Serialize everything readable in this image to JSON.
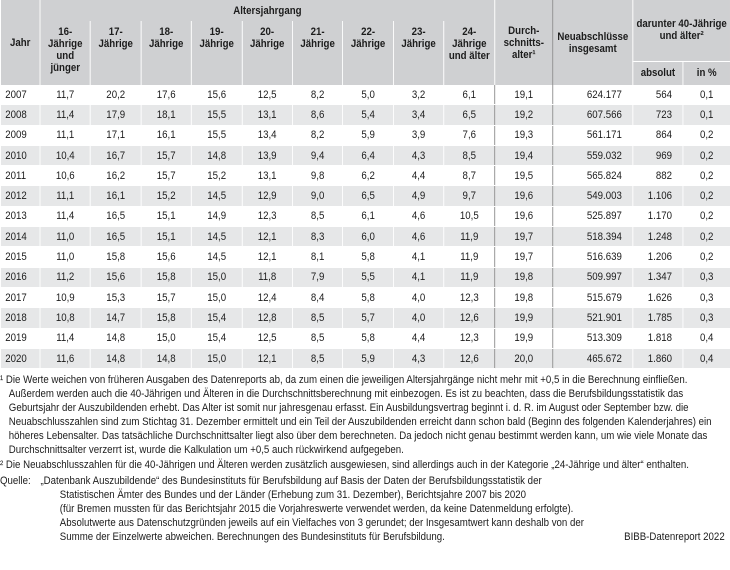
{
  "table": {
    "header": {
      "year": "Jahr",
      "age_group": "Altersjahrgang",
      "ages": [
        "16-Jährige und jünger",
        "17-Jährige",
        "18-Jährige",
        "19-Jährige",
        "20-Jährige",
        "21-Jährige",
        "22-Jährige",
        "23-Jährige",
        "24-Jährige und älter"
      ],
      "average_age": "Durch-schnitts-alter¹",
      "new_contracts": "Neuabschlüsse insgesamt",
      "over_40": "darunter 40-Jährige und älter²",
      "absolute": "absolut",
      "percent": "in %"
    },
    "rows": [
      [
        "2007",
        "11,7",
        "20,2",
        "17,6",
        "15,6",
        "12,5",
        "8,2",
        "5,0",
        "3,2",
        "6,1",
        "19,1",
        "624.177",
        "564",
        "0,1"
      ],
      [
        "2008",
        "11,4",
        "17,9",
        "18,1",
        "15,5",
        "13,1",
        "8,6",
        "5,4",
        "3,4",
        "6,5",
        "19,2",
        "607.566",
        "723",
        "0,1"
      ],
      [
        "2009",
        "11,1",
        "17,1",
        "16,1",
        "15,5",
        "13,4",
        "8,2",
        "5,9",
        "3,9",
        "7,6",
        "19,3",
        "561.171",
        "864",
        "0,2"
      ],
      [
        "2010",
        "10,4",
        "16,7",
        "15,7",
        "14,8",
        "13,9",
        "9,4",
        "6,4",
        "4,3",
        "8,5",
        "19,4",
        "559.032",
        "969",
        "0,2"
      ],
      [
        "2011",
        "10,6",
        "16,2",
        "15,7",
        "15,2",
        "13,1",
        "9,8",
        "6,2",
        "4,4",
        "8,7",
        "19,5",
        "565.824",
        "882",
        "0,2"
      ],
      [
        "2012",
        "11,1",
        "16,1",
        "15,2",
        "14,5",
        "12,9",
        "9,0",
        "6,5",
        "4,9",
        "9,7",
        "19,6",
        "549.003",
        "1.106",
        "0,2"
      ],
      [
        "2013",
        "11,4",
        "16,5",
        "15,1",
        "14,9",
        "12,3",
        "8,5",
        "6,1",
        "4,6",
        "10,5",
        "19,6",
        "525.897",
        "1.170",
        "0,2"
      ],
      [
        "2014",
        "11,0",
        "16,5",
        "15,1",
        "14,5",
        "12,1",
        "8,3",
        "6,0",
        "4,6",
        "11,9",
        "19,7",
        "518.394",
        "1.248",
        "0,2"
      ],
      [
        "2015",
        "11,0",
        "15,8",
        "15,6",
        "14,5",
        "12,1",
        "8,1",
        "5,8",
        "4,1",
        "11,9",
        "19,7",
        "516.639",
        "1.206",
        "0,2"
      ],
      [
        "2016",
        "11,2",
        "15,6",
        "15,8",
        "15,0",
        "11,8",
        "7,9",
        "5,5",
        "4,1",
        "11,9",
        "19,8",
        "509.997",
        "1.347",
        "0,3"
      ],
      [
        "2017",
        "10,9",
        "15,3",
        "15,7",
        "15,0",
        "12,4",
        "8,4",
        "5,8",
        "4,0",
        "12,3",
        "19,8",
        "515.679",
        "1.626",
        "0,3"
      ],
      [
        "2018",
        "10,8",
        "14,7",
        "15,8",
        "15,4",
        "12,8",
        "8,5",
        "5,7",
        "4,0",
        "12,6",
        "19,9",
        "521.901",
        "1.785",
        "0,3"
      ],
      [
        "2019",
        "11,4",
        "14,8",
        "15,0",
        "15,4",
        "12,5",
        "8,5",
        "5,8",
        "4,4",
        "12,3",
        "19,9",
        "513.309",
        "1.818",
        "0,4"
      ],
      [
        "2020",
        "11,6",
        "14,8",
        "14,8",
        "15,0",
        "12,1",
        "8,5",
        "5,9",
        "4,3",
        "12,6",
        "20,0",
        "465.672",
        "1.860",
        "0,4"
      ]
    ]
  },
  "footnotes": [
    "¹ Die Werte weichen von früheren Ausgaben des Datenreports ab, da zum einen die jeweiligen Altersjahrgänge nicht mehr mit +0,5 in die Berechnung einfließen. Außerdem werden auch die 40-Jährigen und Älteren in die Durchschnittsberechnung mit einbezogen. Es ist zu beachten, dass die Berufsbildungsstatistik das Geburtsjahr der Auszubildenden erhebt. Das Alter ist somit nur jahresgenau erfasst. Ein Ausbildungsvertrag beginnt i. d. R. im August oder September bzw. die Neuabschlusszahlen sind zum Stichtag 31. Dezember ermittelt und ein Teil der Auszubildenden erreicht dann schon bald (Beginn des folgenden Kalenderjahres) ein höheres Lebensalter. Das tatsächliche Durchschnittsalter liegt also über dem berechneten. Da jedoch nicht genau bestimmt werden kann, um wie viele Monate das Durchschnittsalter verzerrt ist, wurde die Kalkulation um +0,5 auch rückwirkend aufgegeben.",
    "² Die Neuabschlusszahlen für die 40-Jährigen und Älteren werden zusätzlich ausgewiesen, sind allerdings auch in der Kategorie „24-Jährige und älter“ enthalten."
  ],
  "source": {
    "label": "Quelle:",
    "lines": [
      "„Datenbank Auszubildende“ des Bundesinstituts für Berufsbildung auf Basis der Daten der Berufsbildungsstatistik der",
      "Statistischen Ämter des Bundes und der Länder (Erhebung zum 31. Dezember), Berichtsjahre 2007 bis 2020",
      "(für Bremen mussten für das Berichtsjahr 2015 die Vorjahreswerte verwendet werden, da keine Datenmeldung erfolgte).",
      "Absolutwerte aus Datenschutzgründen jeweils auf ein Vielfaches von 3 gerundet; der Insgesamtwert kann deshalb von der",
      "Summe der Einzelwerte abweichen. Berechnungen des Bundesinstituts für Berufsbildung."
    ]
  },
  "credit": "BIBB-Datenreport 2022"
}
